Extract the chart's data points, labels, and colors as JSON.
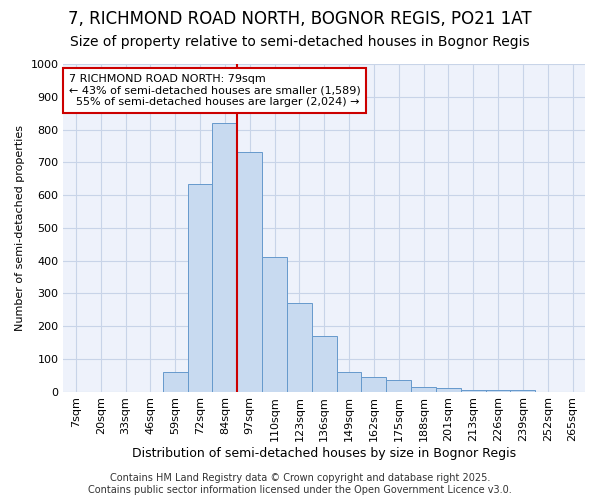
{
  "title": "7, RICHMOND ROAD NORTH, BOGNOR REGIS, PO21 1AT",
  "subtitle": "Size of property relative to semi-detached houses in Bognor Regis",
  "xlabel": "Distribution of semi-detached houses by size in Bognor Regis",
  "ylabel": "Number of semi-detached properties",
  "categories": [
    "7sqm",
    "20sqm",
    "33sqm",
    "46sqm",
    "59sqm",
    "72sqm",
    "84sqm",
    "97sqm",
    "110sqm",
    "123sqm",
    "136sqm",
    "149sqm",
    "162sqm",
    "175sqm",
    "188sqm",
    "201sqm",
    "213sqm",
    "226sqm",
    "239sqm",
    "252sqm",
    "265sqm"
  ],
  "values": [
    0,
    0,
    0,
    0,
    60,
    635,
    820,
    730,
    410,
    270,
    170,
    60,
    45,
    35,
    15,
    10,
    5,
    5,
    5,
    0,
    0
  ],
  "bar_color": "#c8daf0",
  "bar_edge_color": "#6699cc",
  "red_line_x": 6.5,
  "red_line_color": "#cc0000",
  "annotation_line1": "7 RICHMOND ROAD NORTH: 79sqm",
  "annotation_line2": "← 43% of semi-detached houses are smaller (1,589)",
  "annotation_line3": "  55% of semi-detached houses are larger (2,024) →",
  "annotation_box_color": "#ffffff",
  "annotation_box_edge_color": "#cc0000",
  "footer_text": "Contains HM Land Registry data © Crown copyright and database right 2025.\nContains public sector information licensed under the Open Government Licence v3.0.",
  "background_color": "#ffffff",
  "plot_bg_color": "#eef2fb",
  "grid_color": "#c8d4e8",
  "ylim": [
    0,
    1000
  ],
  "yticks": [
    0,
    100,
    200,
    300,
    400,
    500,
    600,
    700,
    800,
    900,
    1000
  ],
  "title_fontsize": 12,
  "subtitle_fontsize": 10,
  "xlabel_fontsize": 9,
  "ylabel_fontsize": 8,
  "tick_fontsize": 8,
  "footer_fontsize": 7,
  "annotation_fontsize": 8
}
